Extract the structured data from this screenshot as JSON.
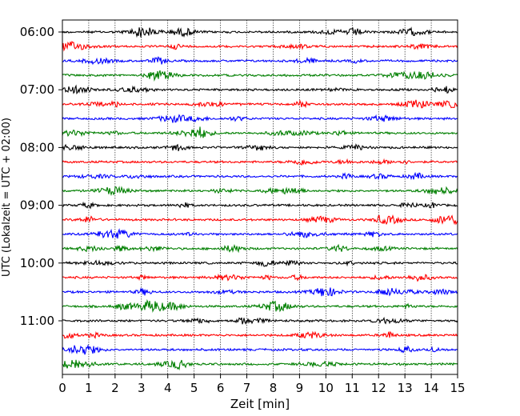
{
  "chart_data": {
    "type": "line",
    "title": "",
    "xlabel": "Zeit  [min]",
    "ylabel": "UTC (Lokalzeit = UTC + 02:00)",
    "xlim": [
      0,
      15
    ],
    "x_ticks": [
      0,
      1,
      2,
      3,
      4,
      5,
      6,
      7,
      8,
      9,
      10,
      11,
      12,
      13,
      14,
      15
    ],
    "x_grid": true,
    "y_ticks": [
      "06:00",
      "07:00",
      "08:00",
      "09:00",
      "10:00",
      "11:00"
    ],
    "trace_interval_minutes": 15,
    "start_time": "06:00",
    "num_traces": 24,
    "trace_colors": [
      "#000000",
      "#ff0000",
      "#0000ff",
      "#007f00"
    ],
    "series_type": "seismogram-helicorder"
  }
}
